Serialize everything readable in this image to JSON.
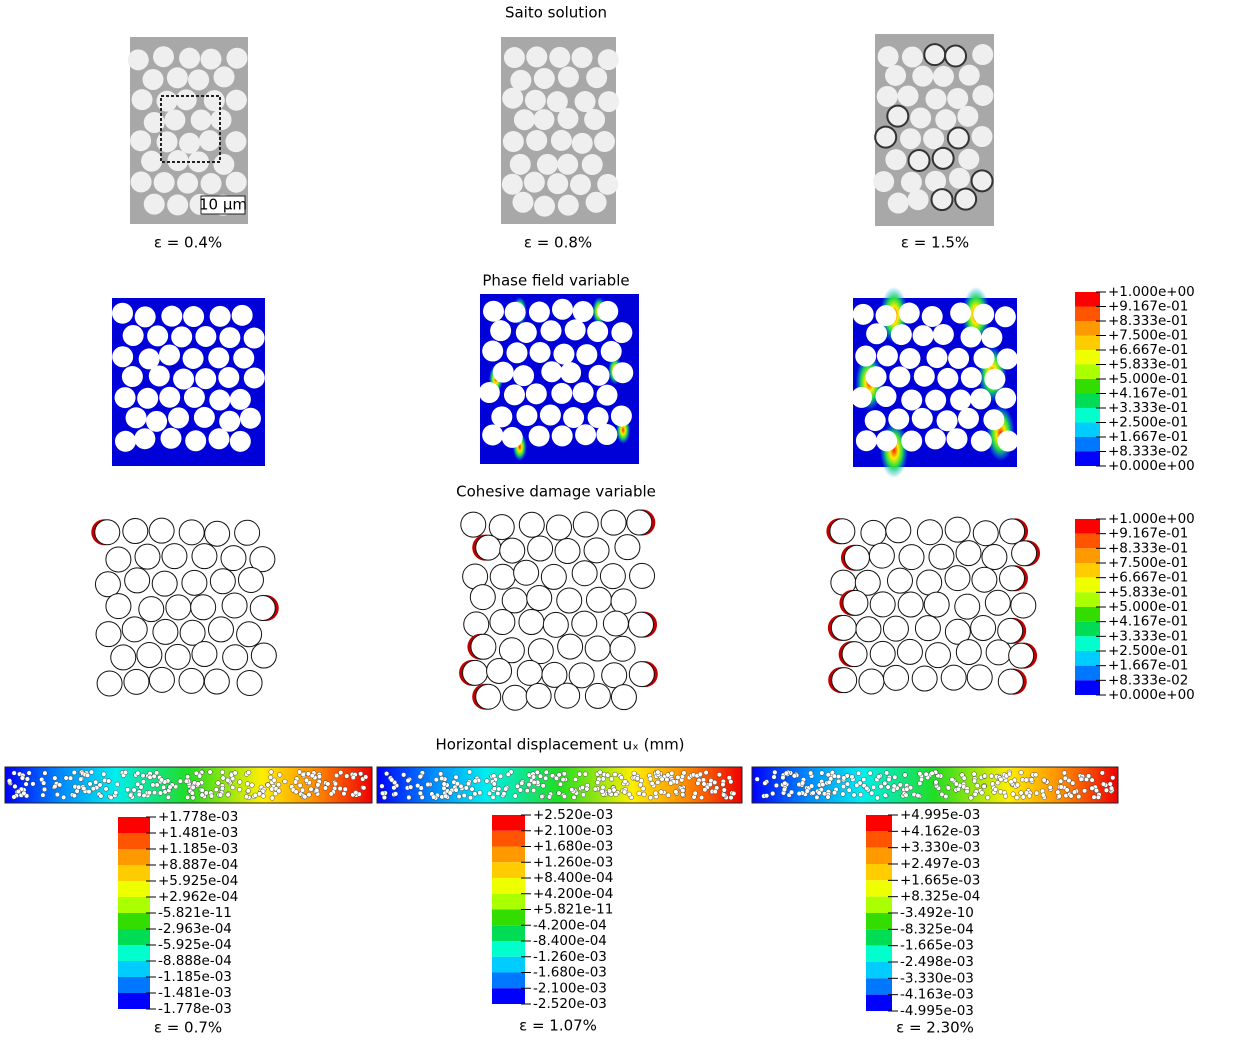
{
  "saito": {
    "title": "Saito solution",
    "scale_bar": "10 μm",
    "strains": [
      "ε = 0.4%",
      "ε = 0.8%",
      "ε = 1.5%"
    ]
  },
  "phase_field": {
    "title": "Phase field variable",
    "legend": [
      "+1.000e+00",
      "+9.167e-01",
      "+8.333e-01",
      "+7.500e-01",
      "+6.667e-01",
      "+5.833e-01",
      "+5.000e-01",
      "+4.167e-01",
      "+3.333e-01",
      "+2.500e-01",
      "+1.667e-01",
      "+8.333e-02",
      "+0.000e+00"
    ]
  },
  "cohesive": {
    "title": "Cohesive damage variable",
    "legend": [
      "+1.000e+00",
      "+9.167e-01",
      "+8.333e-01",
      "+7.500e-01",
      "+6.667e-01",
      "+5.833e-01",
      "+5.000e-01",
      "+4.167e-01",
      "+3.333e-01",
      "+2.500e-01",
      "+1.667e-01",
      "+8.333e-02",
      "+0.000e+00"
    ]
  },
  "displacement": {
    "title": "Horizontal displacement uₓ (mm)",
    "panels": [
      {
        "legend": [
          "+1.778e-03",
          "+1.481e-03",
          "+1.185e-03",
          "+8.887e-04",
          "+5.925e-04",
          "+2.962e-04",
          "-5.821e-11",
          "-2.963e-04",
          "-5.925e-04",
          "-8.888e-04",
          "-1.185e-03",
          "-1.481e-03",
          "-1.778e-03"
        ],
        "strain": "ε = 0.7%"
      },
      {
        "legend": [
          "+2.520e-03",
          "+2.100e-03",
          "+1.680e-03",
          "+1.260e-03",
          "+8.400e-04",
          "+4.200e-04",
          "+5.821e-11",
          "-4.200e-04",
          "-8.400e-04",
          "-1.260e-03",
          "-1.680e-03",
          "-2.100e-03",
          "-2.520e-03"
        ],
        "strain": "ε = 1.07%"
      },
      {
        "legend": [
          "+4.995e-03",
          "+4.162e-03",
          "+3.330e-03",
          "+2.497e-03",
          "+1.665e-03",
          "+8.325e-04",
          "-3.492e-10",
          "-8.325e-04",
          "-1.665e-03",
          "-2.498e-03",
          "-3.330e-03",
          "-4.163e-03",
          "-4.995e-03"
        ],
        "strain": "ε = 2.30%"
      }
    ]
  },
  "colormap": [
    "#ff0000",
    "#ff5500",
    "#ff9900",
    "#ffcc00",
    "#eeff00",
    "#aaff00",
    "#33dd00",
    "#00dd55",
    "#00ffcc",
    "#00ccff",
    "#0077ff",
    "#0000ff"
  ]
}
